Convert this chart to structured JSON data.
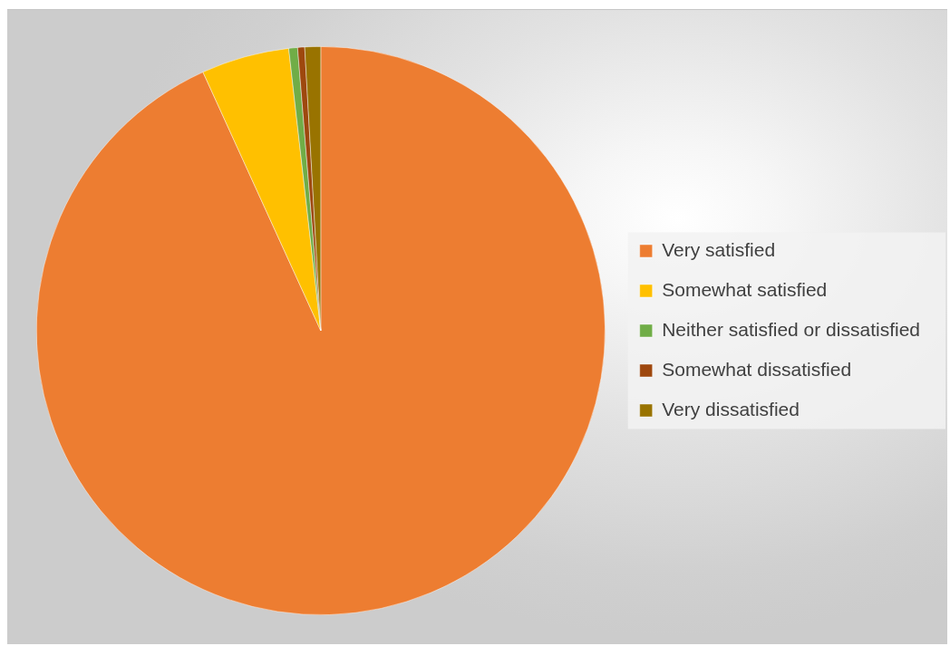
{
  "chart_data": {
    "type": "pie",
    "categories": [
      "Very satisfied",
      "Somewhat satisfied",
      "Neither satisfied or dissatisfied",
      "Somewhat dissatisfied",
      "Very dissatisfied"
    ],
    "values": [
      93.2,
      5.0,
      0.5,
      0.4,
      0.9
    ],
    "colors": [
      "#ed7d31",
      "#ffc000",
      "#70ad47",
      "#9e480e",
      "#997300"
    ],
    "legend": "right"
  }
}
